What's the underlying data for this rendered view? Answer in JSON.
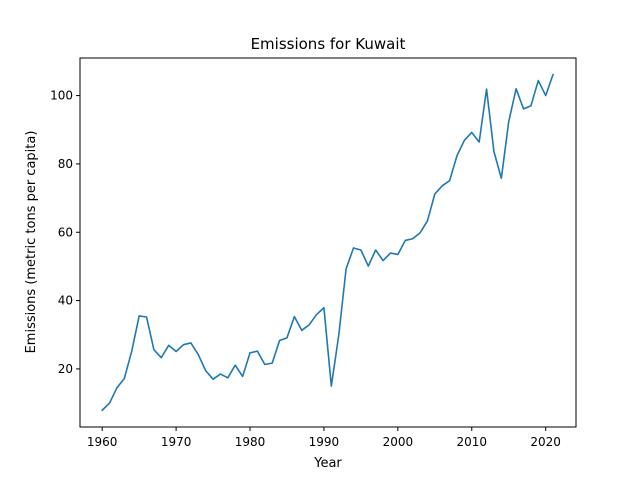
{
  "chart_data": {
    "type": "line",
    "title": "Emissions for Kuwait",
    "xlabel": "Year",
    "ylabel": "Emissions (metric tons per capita)",
    "xlim": [
      1957,
      2024.1
    ],
    "ylim": [
      3.0,
      111.0
    ],
    "xticks": [
      1960,
      1970,
      1980,
      1990,
      2000,
      2010,
      2020
    ],
    "yticks": [
      20,
      40,
      60,
      80,
      100
    ],
    "grid": false,
    "legend": "none",
    "series": [
      {
        "color": "#1f77b4",
        "x": [
          1960,
          1961,
          1962,
          1963,
          1964,
          1965,
          1966,
          1967,
          1968,
          1969,
          1970,
          1971,
          1972,
          1973,
          1974,
          1975,
          1976,
          1977,
          1978,
          1979,
          1980,
          1981,
          1982,
          1983,
          1984,
          1985,
          1986,
          1987,
          1988,
          1989,
          1990,
          1991,
          1992,
          1993,
          1994,
          1995,
          1996,
          1997,
          1998,
          1999,
          2000,
          2001,
          2002,
          2003,
          2004,
          2005,
          2006,
          2007,
          2008,
          2009,
          2010,
          2011,
          2012,
          2013,
          2014,
          2015,
          2016,
          2017,
          2018,
          2019,
          2020,
          2021
        ],
        "y": [
          7.9,
          10.0,
          14.5,
          17.2,
          25.2,
          35.5,
          35.2,
          25.6,
          23.3,
          26.9,
          25.1,
          27.1,
          27.6,
          24.2,
          19.5,
          17.0,
          18.5,
          17.4,
          21.1,
          17.8,
          24.7,
          25.2,
          21.3,
          21.7,
          28.3,
          29.1,
          35.3,
          31.3,
          32.9,
          35.9,
          37.9,
          15.0,
          29.8,
          49.3,
          55.4,
          54.8,
          50.1,
          54.8,
          51.7,
          53.9,
          53.5,
          57.6,
          58.1,
          59.8,
          63.3,
          71.2,
          73.6,
          75.1,
          82.4,
          86.9,
          89.2,
          86.4,
          101.9,
          83.6,
          75.8,
          92.4,
          102.0,
          96.1,
          97.0,
          104.4,
          100.0,
          106.2
        ]
      }
    ]
  }
}
